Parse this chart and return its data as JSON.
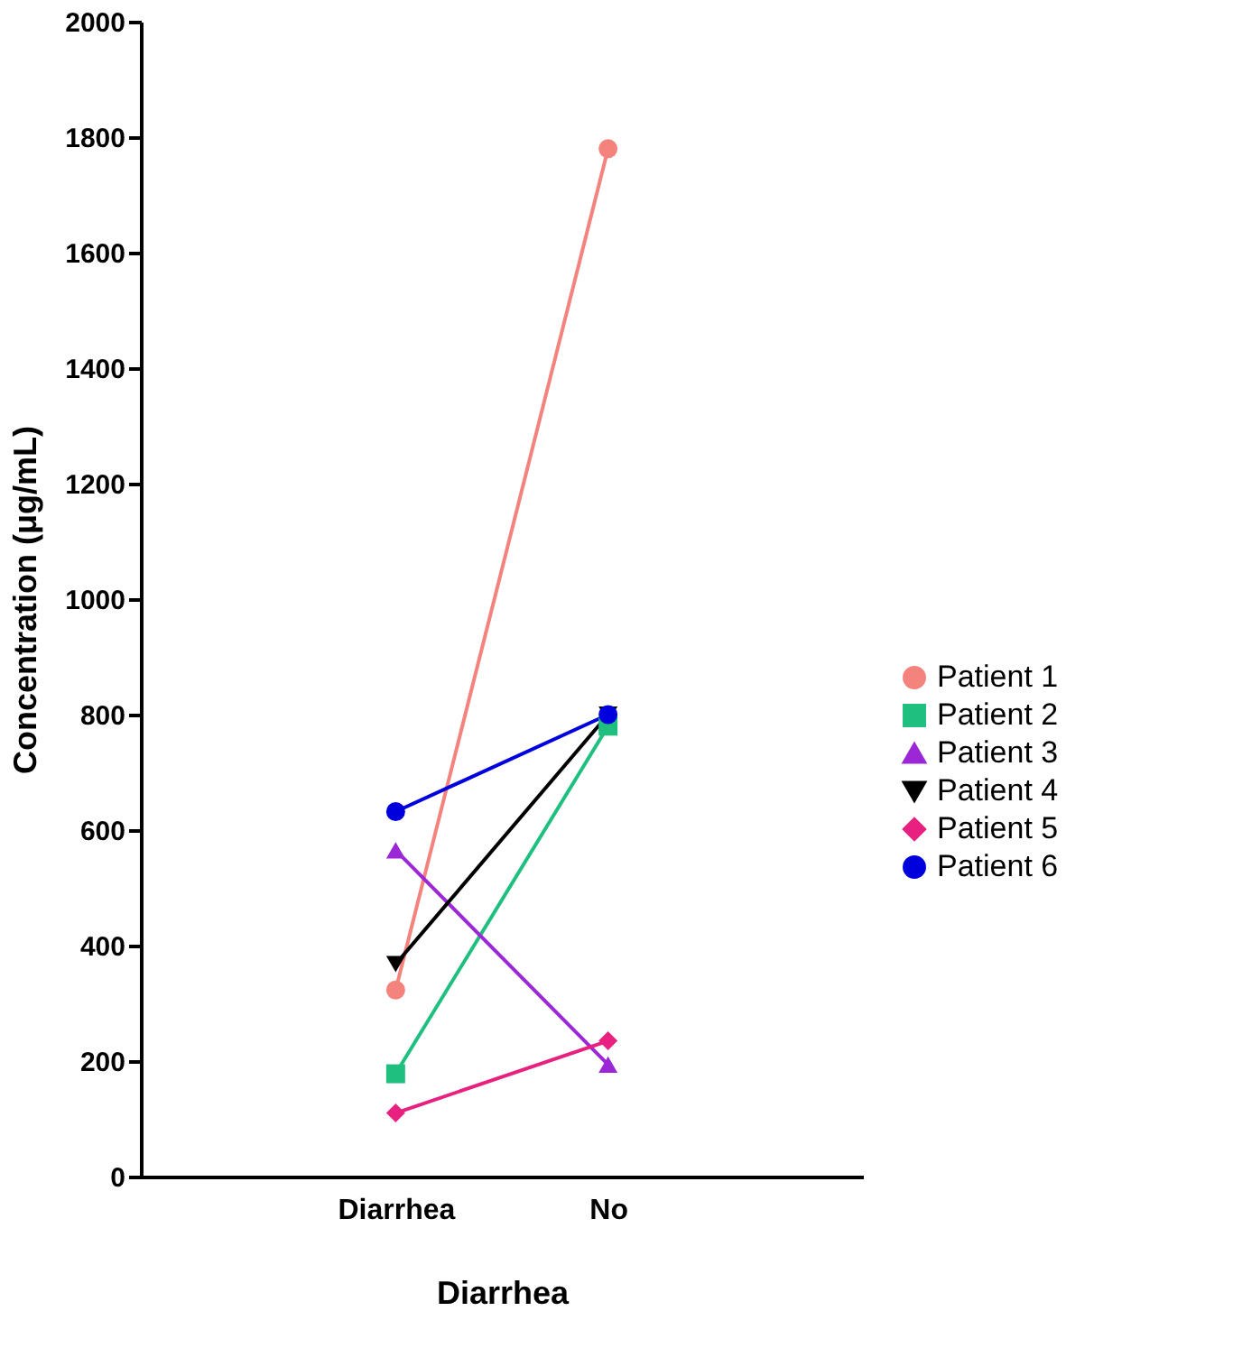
{
  "chart_data": {
    "type": "line",
    "xlabel": "Diarrhea",
    "ylabel": "Concentration (μg/mL)",
    "categories": [
      "Diarrhea",
      "No"
    ],
    "ylim": [
      0,
      2000
    ],
    "yticks": [
      0,
      200,
      400,
      600,
      800,
      1000,
      1200,
      1400,
      1600,
      1800,
      2000
    ],
    "grid": false,
    "legend": "right",
    "line_style": "solid",
    "series": [
      {
        "name": "Patient 1",
        "color": "#f4837d",
        "marker": "circle",
        "values": [
          323,
          1780
        ]
      },
      {
        "name": "Patient 2",
        "color": "#1fbf7f",
        "marker": "square",
        "values": [
          178,
          780
        ]
      },
      {
        "name": "Patient 3",
        "color": "#9b27d6",
        "marker": "triangle",
        "values": [
          565,
          194
        ]
      },
      {
        "name": "Patient 4",
        "color": "#000000",
        "marker": "triangle-down",
        "values": [
          368,
          800
        ]
      },
      {
        "name": "Patient 5",
        "color": "#e8207f",
        "marker": "diamond",
        "values": [
          110,
          235
        ]
      },
      {
        "name": "Patient 6",
        "color": "#0000dd",
        "marker": "circle",
        "values": [
          632,
          800
        ]
      }
    ]
  }
}
